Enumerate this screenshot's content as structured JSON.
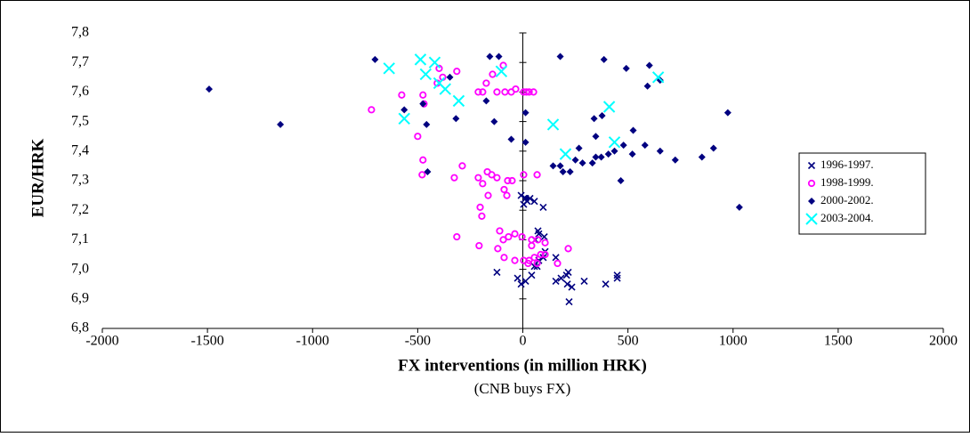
{
  "chart_data": {
    "type": "scatter",
    "xlabel": "FX interventions (in million HRK)",
    "xlabel_note": "(CNB buys FX)",
    "ylabel": "EUR/HRK",
    "xlim": [
      -2000,
      2000
    ],
    "xticks": [
      -2000,
      -1500,
      -1000,
      -500,
      0,
      500,
      1000,
      1500,
      2000
    ],
    "ylim": [
      6.8,
      7.8
    ],
    "yticks": [
      {
        "value": 6.8,
        "label": "6,8"
      },
      {
        "value": 6.9,
        "label": "6,9"
      },
      {
        "value": 7.0,
        "label": "7,0"
      },
      {
        "value": 7.1,
        "label": "7,1"
      },
      {
        "value": 7.2,
        "label": "7,2"
      },
      {
        "value": 7.3,
        "label": "7,3"
      },
      {
        "value": 7.4,
        "label": "7,4"
      },
      {
        "value": 7.5,
        "label": "7,5"
      },
      {
        "value": 7.6,
        "label": "7,6"
      },
      {
        "value": 7.7,
        "label": "7,7"
      },
      {
        "value": 7.8,
        "label": "7,8"
      }
    ],
    "legend": "right",
    "series": [
      {
        "name": "1996-1997.",
        "color": "#000080",
        "marker": "x",
        "x": [
          -123,
          -8,
          -25,
          13,
          42,
          68,
          55,
          76,
          97,
          106,
          59,
          76,
          72,
          102,
          157,
          157,
          182,
          208,
          216,
          212,
          233,
          220,
          394,
          292,
          449,
          449,
          97,
          -8,
          13,
          34,
          55,
          4,
          21
        ],
        "values": [
          6.99,
          6.95,
          6.97,
          6.96,
          6.98,
          7.01,
          7.01,
          7.03,
          7.04,
          7.06,
          7.1,
          7.12,
          7.13,
          7.11,
          7.04,
          6.96,
          6.97,
          6.98,
          6.99,
          6.95,
          6.94,
          6.89,
          6.95,
          6.96,
          6.97,
          6.98,
          7.21,
          7.25,
          7.24,
          7.24,
          7.23,
          7.22,
          7.23
        ]
      },
      {
        "name": "1998-1999.",
        "color": "#ff00ff",
        "marker": "circle",
        "x": [
          -720,
          -576,
          -475,
          -470,
          -500,
          -475,
          -479,
          -398,
          -381,
          -407,
          -314,
          -174,
          -144,
          -93,
          -212,
          -191,
          -123,
          -85,
          -55,
          -34,
          4,
          30,
          51,
          17,
          -169,
          -288,
          -148,
          -165,
          -123,
          -72,
          -89,
          -76,
          -51,
          4,
          68,
          -326,
          -212,
          -191,
          -203,
          -195,
          -314,
          -208,
          -110,
          -93,
          -68,
          -38,
          -4,
          42,
          72,
          106,
          42,
          -119,
          -89,
          -38,
          4,
          30,
          55,
          85,
          106,
          165,
          216,
          25,
          68
        ],
        "values": [
          7.54,
          7.59,
          7.59,
          7.56,
          7.45,
          7.37,
          7.32,
          7.68,
          7.65,
          7.63,
          7.67,
          7.63,
          7.66,
          7.69,
          7.6,
          7.6,
          7.6,
          7.6,
          7.6,
          7.61,
          7.6,
          7.6,
          7.6,
          7.6,
          7.33,
          7.35,
          7.32,
          7.25,
          7.31,
          7.3,
          7.27,
          7.25,
          7.3,
          7.32,
          7.32,
          7.31,
          7.31,
          7.29,
          7.21,
          7.18,
          7.11,
          7.08,
          7.13,
          7.1,
          7.11,
          7.12,
          7.11,
          7.1,
          7.1,
          7.09,
          7.08,
          7.07,
          7.04,
          7.03,
          7.03,
          7.03,
          7.04,
          7.05,
          7.05,
          7.02,
          7.07,
          7.02,
          7.02
        ]
      },
      {
        "name": "2000-2002.",
        "color": "#000080",
        "marker": "diamond",
        "x": [
          -1492,
          -1153,
          -703,
          -564,
          -475,
          -458,
          -453,
          -347,
          -318,
          -157,
          -114,
          -174,
          -136,
          -55,
          13,
          13,
          17,
          178,
          386,
          339,
          377,
          492,
          593,
          602,
          653,
          975,
          1030,
          907,
          852,
          725,
          653,
          581,
          521,
          479,
          436,
          407,
          373,
          347,
          331,
          284,
          250,
          267,
          225,
          191,
          144,
          178,
          347,
          466,
          525
        ],
        "values": [
          7.61,
          7.49,
          7.71,
          7.54,
          7.56,
          7.49,
          7.33,
          7.65,
          7.51,
          7.72,
          7.72,
          7.57,
          7.5,
          7.44,
          7.53,
          7.43,
          7.24,
          7.72,
          7.71,
          7.51,
          7.52,
          7.68,
          7.62,
          7.69,
          7.64,
          7.53,
          7.21,
          7.41,
          7.38,
          7.37,
          7.4,
          7.42,
          7.39,
          7.42,
          7.4,
          7.39,
          7.38,
          7.38,
          7.36,
          7.36,
          7.37,
          7.41,
          7.33,
          7.33,
          7.35,
          7.35,
          7.45,
          7.3,
          7.47
        ]
      },
      {
        "name": "2003-2004.",
        "color": "#00ffff",
        "marker": "bigx",
        "x": [
          -636,
          -487,
          -419,
          -462,
          -398,
          -369,
          -305,
          -564,
          -102,
          144,
          411,
          436,
          203,
          644
        ],
        "values": [
          7.68,
          7.71,
          7.7,
          7.66,
          7.63,
          7.61,
          7.57,
          7.51,
          7.67,
          7.49,
          7.55,
          7.43,
          7.39,
          7.65
        ]
      }
    ]
  }
}
